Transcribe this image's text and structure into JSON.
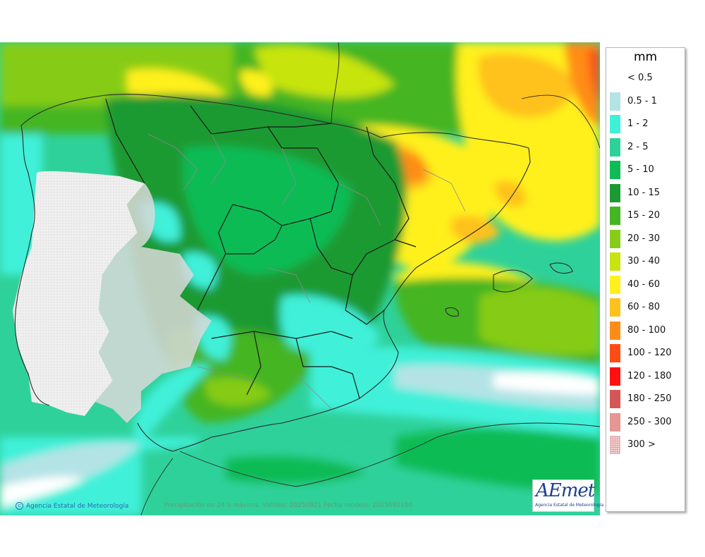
{
  "legend": {
    "unit": "mm",
    "items": [
      {
        "label": "< 0.5",
        "color": "#ffffff"
      },
      {
        "label": "0.5 - 1",
        "color": "#b4e3e5"
      },
      {
        "label": "1 - 2",
        "color": "#3ff0d9"
      },
      {
        "label": "2 - 5",
        "color": "#2fd19a"
      },
      {
        "label": "5 - 10",
        "color": "#0fbb55"
      },
      {
        "label": "10 - 15",
        "color": "#1b9a33"
      },
      {
        "label": "15 - 20",
        "color": "#44b523"
      },
      {
        "label": "20 - 30",
        "color": "#86cc19"
      },
      {
        "label": "30 - 40",
        "color": "#c7e411"
      },
      {
        "label": "40 - 60",
        "color": "#fff01e"
      },
      {
        "label": "60 - 80",
        "color": "#ffc11e"
      },
      {
        "label": "80 - 100",
        "color": "#ff8c19"
      },
      {
        "label": "100 - 120",
        "color": "#ff4c14"
      },
      {
        "label": "120 - 180",
        "color": "#ff0f0f"
      },
      {
        "label": "180 - 250",
        "color": "#d45656"
      },
      {
        "label": "250 - 300",
        "color": "#e89595"
      },
      {
        "label": "300 >",
        "color": "#f6d5d5"
      }
    ]
  },
  "footer": {
    "credit": "Agencia Estatal de Meteorología",
    "caption": "Precipitación en 24 h máxima. Validez: 20250921 Fecha modelo: 2025092100"
  },
  "logo": {
    "wordmark": "AEmet",
    "subtitle": "Agencia Estatal de Meteorología"
  }
}
